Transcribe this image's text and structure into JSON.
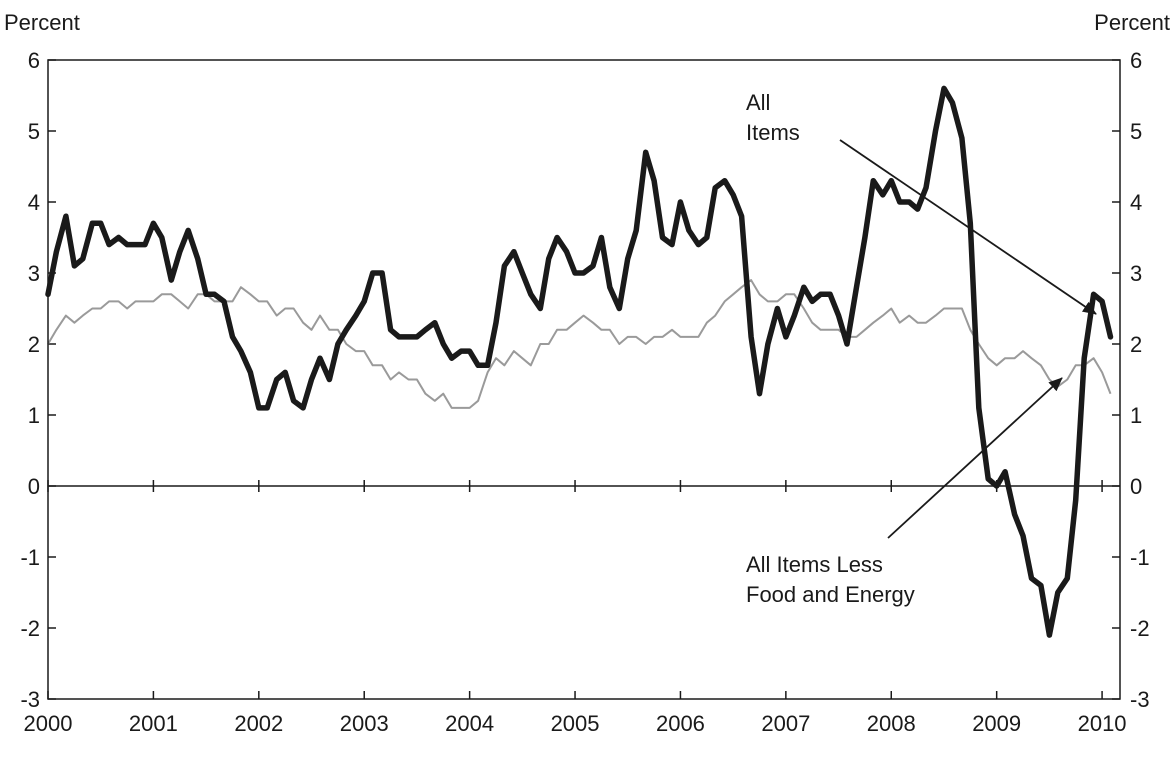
{
  "chart_data": {
    "type": "line",
    "ylabel_left": "Percent",
    "ylabel_right": "Percent",
    "ylim": [
      -3,
      6
    ],
    "yticks": [
      "6",
      "5",
      "4",
      "3",
      "2",
      "1",
      "0",
      "-1",
      "-2",
      "-3"
    ],
    "xlim": [
      2000.0,
      2010.17
    ],
    "xticks": [
      "2000",
      "2001",
      "2002",
      "2003",
      "2004",
      "2005",
      "2006",
      "2007",
      "2008",
      "2009",
      "2010"
    ],
    "zero_line": true,
    "grid": false,
    "annotations": [
      {
        "lines": [
          "All",
          "Items"
        ],
        "series": "all_items"
      },
      {
        "lines": [
          "All Items Less",
          "Food and Energy"
        ],
        "series": "core"
      }
    ],
    "series": [
      {
        "id": "all_items",
        "color": "#1a1a1a",
        "style": "thick",
        "points": [
          [
            2000.0,
            2.7
          ],
          [
            2000.08,
            3.3
          ],
          [
            2000.17,
            3.8
          ],
          [
            2000.25,
            3.1
          ],
          [
            2000.33,
            3.2
          ],
          [
            2000.42,
            3.7
          ],
          [
            2000.5,
            3.7
          ],
          [
            2000.58,
            3.4
          ],
          [
            2000.67,
            3.5
          ],
          [
            2000.75,
            3.4
          ],
          [
            2000.83,
            3.4
          ],
          [
            2000.92,
            3.4
          ],
          [
            2001.0,
            3.7
          ],
          [
            2001.08,
            3.5
          ],
          [
            2001.17,
            2.9
          ],
          [
            2001.25,
            3.3
          ],
          [
            2001.33,
            3.6
          ],
          [
            2001.42,
            3.2
          ],
          [
            2001.5,
            2.7
          ],
          [
            2001.58,
            2.7
          ],
          [
            2001.67,
            2.6
          ],
          [
            2001.75,
            2.1
          ],
          [
            2001.83,
            1.9
          ],
          [
            2001.92,
            1.6
          ],
          [
            2002.0,
            1.1
          ],
          [
            2002.08,
            1.1
          ],
          [
            2002.17,
            1.5
          ],
          [
            2002.25,
            1.6
          ],
          [
            2002.33,
            1.2
          ],
          [
            2002.42,
            1.1
          ],
          [
            2002.5,
            1.5
          ],
          [
            2002.58,
            1.8
          ],
          [
            2002.67,
            1.5
          ],
          [
            2002.75,
            2.0
          ],
          [
            2002.83,
            2.2
          ],
          [
            2002.92,
            2.4
          ],
          [
            2003.0,
            2.6
          ],
          [
            2003.08,
            3.0
          ],
          [
            2003.17,
            3.0
          ],
          [
            2003.25,
            2.2
          ],
          [
            2003.33,
            2.1
          ],
          [
            2003.42,
            2.1
          ],
          [
            2003.5,
            2.1
          ],
          [
            2003.58,
            2.2
          ],
          [
            2003.67,
            2.3
          ],
          [
            2003.75,
            2.0
          ],
          [
            2003.83,
            1.8
          ],
          [
            2003.92,
            1.9
          ],
          [
            2004.0,
            1.9
          ],
          [
            2004.08,
            1.7
          ],
          [
            2004.17,
            1.7
          ],
          [
            2004.25,
            2.3
          ],
          [
            2004.33,
            3.1
          ],
          [
            2004.42,
            3.3
          ],
          [
            2004.5,
            3.0
          ],
          [
            2004.58,
            2.7
          ],
          [
            2004.67,
            2.5
          ],
          [
            2004.75,
            3.2
          ],
          [
            2004.83,
            3.5
          ],
          [
            2004.92,
            3.3
          ],
          [
            2005.0,
            3.0
          ],
          [
            2005.08,
            3.0
          ],
          [
            2005.17,
            3.1
          ],
          [
            2005.25,
            3.5
          ],
          [
            2005.33,
            2.8
          ],
          [
            2005.42,
            2.5
          ],
          [
            2005.5,
            3.2
          ],
          [
            2005.58,
            3.6
          ],
          [
            2005.67,
            4.7
          ],
          [
            2005.75,
            4.3
          ],
          [
            2005.83,
            3.5
          ],
          [
            2005.92,
            3.4
          ],
          [
            2006.0,
            4.0
          ],
          [
            2006.08,
            3.6
          ],
          [
            2006.17,
            3.4
          ],
          [
            2006.25,
            3.5
          ],
          [
            2006.33,
            4.2
          ],
          [
            2006.42,
            4.3
          ],
          [
            2006.5,
            4.1
          ],
          [
            2006.58,
            3.8
          ],
          [
            2006.67,
            2.1
          ],
          [
            2006.75,
            1.3
          ],
          [
            2006.83,
            2.0
          ],
          [
            2006.92,
            2.5
          ],
          [
            2007.0,
            2.1
          ],
          [
            2007.08,
            2.4
          ],
          [
            2007.17,
            2.8
          ],
          [
            2007.25,
            2.6
          ],
          [
            2007.33,
            2.7
          ],
          [
            2007.42,
            2.7
          ],
          [
            2007.5,
            2.4
          ],
          [
            2007.58,
            2.0
          ],
          [
            2007.67,
            2.8
          ],
          [
            2007.75,
            3.5
          ],
          [
            2007.83,
            4.3
          ],
          [
            2007.92,
            4.1
          ],
          [
            2008.0,
            4.3
          ],
          [
            2008.08,
            4.0
          ],
          [
            2008.17,
            4.0
          ],
          [
            2008.25,
            3.9
          ],
          [
            2008.33,
            4.2
          ],
          [
            2008.42,
            5.0
          ],
          [
            2008.5,
            5.6
          ],
          [
            2008.58,
            5.4
          ],
          [
            2008.67,
            4.9
          ],
          [
            2008.75,
            3.7
          ],
          [
            2008.83,
            1.1
          ],
          [
            2008.92,
            0.1
          ],
          [
            2009.0,
            0.0
          ],
          [
            2009.08,
            0.2
          ],
          [
            2009.17,
            -0.4
          ],
          [
            2009.25,
            -0.7
          ],
          [
            2009.33,
            -1.3
          ],
          [
            2009.42,
            -1.4
          ],
          [
            2009.5,
            -2.1
          ],
          [
            2009.58,
            -1.5
          ],
          [
            2009.67,
            -1.3
          ],
          [
            2009.75,
            -0.2
          ],
          [
            2009.83,
            1.8
          ],
          [
            2009.92,
            2.7
          ],
          [
            2010.0,
            2.6
          ],
          [
            2010.08,
            2.1
          ]
        ]
      },
      {
        "id": "core",
        "color": "#9a9a9a",
        "style": "thin",
        "points": [
          [
            2000.0,
            2.0
          ],
          [
            2000.08,
            2.2
          ],
          [
            2000.17,
            2.4
          ],
          [
            2000.25,
            2.3
          ],
          [
            2000.33,
            2.4
          ],
          [
            2000.42,
            2.5
          ],
          [
            2000.5,
            2.5
          ],
          [
            2000.58,
            2.6
          ],
          [
            2000.67,
            2.6
          ],
          [
            2000.75,
            2.5
          ],
          [
            2000.83,
            2.6
          ],
          [
            2000.92,
            2.6
          ],
          [
            2001.0,
            2.6
          ],
          [
            2001.08,
            2.7
          ],
          [
            2001.17,
            2.7
          ],
          [
            2001.25,
            2.6
          ],
          [
            2001.33,
            2.5
          ],
          [
            2001.42,
            2.7
          ],
          [
            2001.5,
            2.7
          ],
          [
            2001.58,
            2.6
          ],
          [
            2001.67,
            2.6
          ],
          [
            2001.75,
            2.6
          ],
          [
            2001.83,
            2.8
          ],
          [
            2001.92,
            2.7
          ],
          [
            2002.0,
            2.6
          ],
          [
            2002.08,
            2.6
          ],
          [
            2002.17,
            2.4
          ],
          [
            2002.25,
            2.5
          ],
          [
            2002.33,
            2.5
          ],
          [
            2002.42,
            2.3
          ],
          [
            2002.5,
            2.2
          ],
          [
            2002.58,
            2.4
          ],
          [
            2002.67,
            2.2
          ],
          [
            2002.75,
            2.2
          ],
          [
            2002.83,
            2.0
          ],
          [
            2002.92,
            1.9
          ],
          [
            2003.0,
            1.9
          ],
          [
            2003.08,
            1.7
          ],
          [
            2003.17,
            1.7
          ],
          [
            2003.25,
            1.5
          ],
          [
            2003.33,
            1.6
          ],
          [
            2003.42,
            1.5
          ],
          [
            2003.5,
            1.5
          ],
          [
            2003.58,
            1.3
          ],
          [
            2003.67,
            1.2
          ],
          [
            2003.75,
            1.3
          ],
          [
            2003.83,
            1.1
          ],
          [
            2003.92,
            1.1
          ],
          [
            2004.0,
            1.1
          ],
          [
            2004.08,
            1.2
          ],
          [
            2004.17,
            1.6
          ],
          [
            2004.25,
            1.8
          ],
          [
            2004.33,
            1.7
          ],
          [
            2004.42,
            1.9
          ],
          [
            2004.5,
            1.8
          ],
          [
            2004.58,
            1.7
          ],
          [
            2004.67,
            2.0
          ],
          [
            2004.75,
            2.0
          ],
          [
            2004.83,
            2.2
          ],
          [
            2004.92,
            2.2
          ],
          [
            2005.0,
            2.3
          ],
          [
            2005.08,
            2.4
          ],
          [
            2005.17,
            2.3
          ],
          [
            2005.25,
            2.2
          ],
          [
            2005.33,
            2.2
          ],
          [
            2005.42,
            2.0
          ],
          [
            2005.5,
            2.1
          ],
          [
            2005.58,
            2.1
          ],
          [
            2005.67,
            2.0
          ],
          [
            2005.75,
            2.1
          ],
          [
            2005.83,
            2.1
          ],
          [
            2005.92,
            2.2
          ],
          [
            2006.0,
            2.1
          ],
          [
            2006.08,
            2.1
          ],
          [
            2006.17,
            2.1
          ],
          [
            2006.25,
            2.3
          ],
          [
            2006.33,
            2.4
          ],
          [
            2006.42,
            2.6
          ],
          [
            2006.5,
            2.7
          ],
          [
            2006.58,
            2.8
          ],
          [
            2006.67,
            2.9
          ],
          [
            2006.75,
            2.7
          ],
          [
            2006.83,
            2.6
          ],
          [
            2006.92,
            2.6
          ],
          [
            2007.0,
            2.7
          ],
          [
            2007.08,
            2.7
          ],
          [
            2007.17,
            2.5
          ],
          [
            2007.25,
            2.3
          ],
          [
            2007.33,
            2.2
          ],
          [
            2007.42,
            2.2
          ],
          [
            2007.5,
            2.2
          ],
          [
            2007.58,
            2.1
          ],
          [
            2007.67,
            2.1
          ],
          [
            2007.75,
            2.2
          ],
          [
            2007.83,
            2.3
          ],
          [
            2007.92,
            2.4
          ],
          [
            2008.0,
            2.5
          ],
          [
            2008.08,
            2.3
          ],
          [
            2008.17,
            2.4
          ],
          [
            2008.25,
            2.3
          ],
          [
            2008.33,
            2.3
          ],
          [
            2008.42,
            2.4
          ],
          [
            2008.5,
            2.5
          ],
          [
            2008.58,
            2.5
          ],
          [
            2008.67,
            2.5
          ],
          [
            2008.75,
            2.2
          ],
          [
            2008.83,
            2.0
          ],
          [
            2008.92,
            1.8
          ],
          [
            2009.0,
            1.7
          ],
          [
            2009.08,
            1.8
          ],
          [
            2009.17,
            1.8
          ],
          [
            2009.25,
            1.9
          ],
          [
            2009.33,
            1.8
          ],
          [
            2009.42,
            1.7
          ],
          [
            2009.5,
            1.5
          ],
          [
            2009.58,
            1.4
          ],
          [
            2009.67,
            1.5
          ],
          [
            2009.75,
            1.7
          ],
          [
            2009.83,
            1.7
          ],
          [
            2009.92,
            1.8
          ],
          [
            2010.0,
            1.6
          ],
          [
            2010.08,
            1.3
          ]
        ]
      }
    ]
  }
}
